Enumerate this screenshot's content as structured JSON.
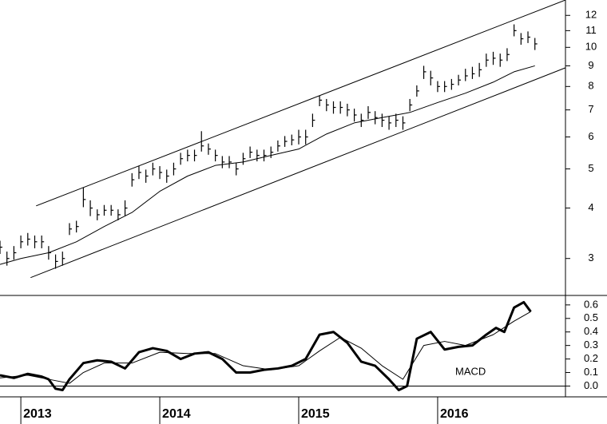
{
  "chart_data": [
    {
      "type": "ohlc",
      "log_scale": true,
      "color": "#000000",
      "xlim": [
        2012.85,
        2016.92
      ],
      "ylim": [
        2.43,
        13.1
      ],
      "yticks": [
        3,
        4,
        5,
        6,
        7,
        8,
        9,
        10,
        11,
        12
      ],
      "x": [
        2012.85,
        2012.9,
        2012.95,
        2013.0,
        2013.05,
        2013.1,
        2013.15,
        2013.2,
        2013.25,
        2013.3,
        2013.35,
        2013.4,
        2013.45,
        2013.5,
        2013.55,
        2013.6,
        2013.65,
        2013.7,
        2013.75,
        2013.8,
        2013.85,
        2013.9,
        2013.95,
        2014.0,
        2014.05,
        2014.1,
        2014.15,
        2014.2,
        2014.25,
        2014.3,
        2014.35,
        2014.4,
        2014.45,
        2014.5,
        2014.55,
        2014.6,
        2014.65,
        2014.7,
        2014.75,
        2014.8,
        2014.85,
        2014.9,
        2014.95,
        2015.0,
        2015.05,
        2015.1,
        2015.15,
        2015.2,
        2015.25,
        2015.3,
        2015.35,
        2015.4,
        2015.45,
        2015.5,
        2015.55,
        2015.6,
        2015.65,
        2015.7,
        2015.75,
        2015.8,
        2015.85,
        2015.9,
        2015.95,
        2016.0,
        2016.05,
        2016.1,
        2016.15,
        2016.2,
        2016.25,
        2016.3,
        2016.35,
        2016.4,
        2016.45,
        2016.5,
        2016.55,
        2016.6,
        2016.65,
        2016.7
      ],
      "high": [
        3.32,
        3.12,
        3.22,
        3.42,
        3.47,
        3.42,
        3.42,
        3.22,
        3.07,
        3.12,
        3.67,
        3.72,
        4.5,
        4.18,
        3.97,
        4.07,
        4.07,
        3.97,
        4.18,
        4.88,
        5.08,
        4.98,
        5.18,
        5.08,
        4.98,
        5.18,
        5.48,
        5.58,
        5.58,
        6.2,
        5.78,
        5.58,
        5.38,
        5.38,
        5.18,
        5.48,
        5.68,
        5.58,
        5.58,
        5.68,
        5.88,
        6.03,
        6.08,
        6.25,
        6.25,
        6.85,
        7.6,
        7.45,
        7.35,
        7.35,
        7.25,
        7.05,
        6.85,
        7.15,
        6.95,
        6.85,
        6.75,
        6.85,
        6.75,
        7.45,
        8.05,
        9.0,
        8.75,
        8.25,
        8.25,
        8.35,
        8.55,
        8.85,
        8.95,
        9.15,
        9.65,
        9.75,
        9.65,
        9.95,
        11.4,
        10.85,
        10.95,
        10.55
      ],
      "low": [
        3.08,
        2.88,
        2.98,
        3.18,
        3.23,
        3.18,
        3.18,
        2.98,
        2.83,
        2.88,
        3.43,
        3.48,
        4.02,
        3.82,
        3.73,
        3.83,
        3.83,
        3.73,
        3.82,
        4.52,
        4.72,
        4.62,
        4.82,
        4.72,
        4.62,
        4.82,
        5.12,
        5.22,
        5.22,
        5.52,
        5.42,
        5.22,
        5.02,
        5.02,
        4.82,
        5.12,
        5.32,
        5.22,
        5.22,
        5.32,
        5.52,
        5.67,
        5.72,
        5.75,
        5.75,
        6.35,
        7.15,
        6.95,
        6.85,
        6.85,
        6.75,
        6.55,
        6.35,
        6.65,
        6.45,
        6.35,
        6.25,
        6.35,
        6.25,
        6.95,
        7.55,
        8.35,
        8.05,
        7.75,
        7.75,
        7.85,
        8.05,
        8.25,
        8.35,
        8.45,
        8.95,
        9.05,
        8.95,
        9.25,
        10.65,
        10.15,
        10.25,
        9.85
      ],
      "close": [
        3.2,
        3.0,
        3.1,
        3.3,
        3.35,
        3.3,
        3.3,
        3.1,
        2.95,
        3.0,
        3.55,
        3.6,
        4.2,
        4.0,
        3.85,
        3.95,
        3.95,
        3.85,
        4.0,
        4.7,
        4.9,
        4.8,
        5.0,
        4.9,
        4.8,
        5.0,
        5.3,
        5.4,
        5.4,
        5.7,
        5.6,
        5.4,
        5.2,
        5.2,
        5.0,
        5.3,
        5.5,
        5.4,
        5.4,
        5.5,
        5.7,
        5.85,
        5.9,
        6.0,
        6.0,
        6.6,
        7.4,
        7.2,
        7.1,
        7.1,
        7.0,
        6.8,
        6.6,
        6.9,
        6.7,
        6.6,
        6.5,
        6.6,
        6.5,
        7.2,
        7.8,
        8.7,
        8.4,
        8.0,
        8.0,
        8.1,
        8.3,
        8.5,
        8.6,
        8.8,
        9.3,
        9.4,
        9.3,
        9.6,
        11.0,
        10.5,
        10.6,
        10.2
      ],
      "overlays": [
        {
          "x": [
            2012.85,
            2013.0,
            2013.2,
            2013.4,
            2013.6,
            2013.8,
            2014.0,
            2014.2,
            2014.4,
            2014.6,
            2014.8,
            2015.0,
            2015.2,
            2015.4,
            2015.6,
            2015.8,
            2016.0,
            2016.2,
            2016.4,
            2016.55,
            2016.7
          ],
          "values": [
            2.9,
            3.0,
            3.1,
            3.3,
            3.6,
            3.9,
            4.4,
            4.8,
            5.1,
            5.2,
            5.4,
            5.6,
            6.1,
            6.5,
            6.7,
            6.9,
            7.3,
            7.7,
            8.2,
            8.7,
            9.0
          ]
        },
        {
          "x": [
            2013.11,
            2016.92
          ],
          "values": [
            4.05,
            13.1
          ]
        },
        {
          "x": [
            2013.07,
            2016.92
          ],
          "values": [
            2.69,
            8.9
          ]
        }
      ]
    },
    {
      "type": "line",
      "color": "#000000",
      "label": "MACD",
      "zero_line": true,
      "xlim": [
        2012.85,
        2016.92
      ],
      "xticks": [
        2013,
        2014,
        2015,
        2016
      ],
      "ylim": [
        -0.08,
        0.67
      ],
      "yticks": [
        {
          "value": 0,
          "label": "0.0"
        },
        0.1,
        0.2,
        0.3,
        0.4,
        0.5,
        0.6
      ],
      "series": [
        {
          "width": 3,
          "x": [
            2012.85,
            2012.95,
            2013.05,
            2013.15,
            2013.2,
            2013.25,
            2013.3,
            2013.35,
            2013.45,
            2013.55,
            2013.65,
            2013.75,
            2013.85,
            2013.95,
            2014.05,
            2014.15,
            2014.25,
            2014.35,
            2014.45,
            2014.55,
            2014.65,
            2014.75,
            2014.85,
            2014.95,
            2015.05,
            2015.15,
            2015.25,
            2015.35,
            2015.45,
            2015.55,
            2015.65,
            2015.72,
            2015.78,
            2015.85,
            2015.95,
            2016.05,
            2016.15,
            2016.25,
            2016.35,
            2016.42,
            2016.48,
            2016.55,
            2016.62,
            2016.67
          ],
          "values": [
            0.08,
            0.06,
            0.09,
            0.07,
            0.05,
            -0.02,
            -0.03,
            0.05,
            0.17,
            0.19,
            0.18,
            0.13,
            0.25,
            0.28,
            0.26,
            0.2,
            0.24,
            0.25,
            0.2,
            0.1,
            0.1,
            0.12,
            0.13,
            0.15,
            0.2,
            0.38,
            0.4,
            0.32,
            0.18,
            0.15,
            0.05,
            -0.03,
            0.0,
            0.35,
            0.4,
            0.27,
            0.29,
            0.3,
            0.38,
            0.43,
            0.4,
            0.58,
            0.62,
            0.55
          ]
        },
        {
          "width": 1,
          "x": [
            2012.85,
            2013.05,
            2013.25,
            2013.35,
            2013.45,
            2013.6,
            2013.8,
            2014.0,
            2014.2,
            2014.4,
            2014.6,
            2014.8,
            2015.0,
            2015.15,
            2015.3,
            2015.45,
            2015.6,
            2015.75,
            2015.9,
            2016.05,
            2016.2,
            2016.4,
            2016.55,
            2016.67
          ],
          "values": [
            0.06,
            0.08,
            0.04,
            0.02,
            0.1,
            0.17,
            0.17,
            0.25,
            0.24,
            0.24,
            0.15,
            0.12,
            0.15,
            0.26,
            0.36,
            0.28,
            0.15,
            0.05,
            0.3,
            0.33,
            0.3,
            0.38,
            0.48,
            0.55
          ]
        }
      ]
    }
  ]
}
